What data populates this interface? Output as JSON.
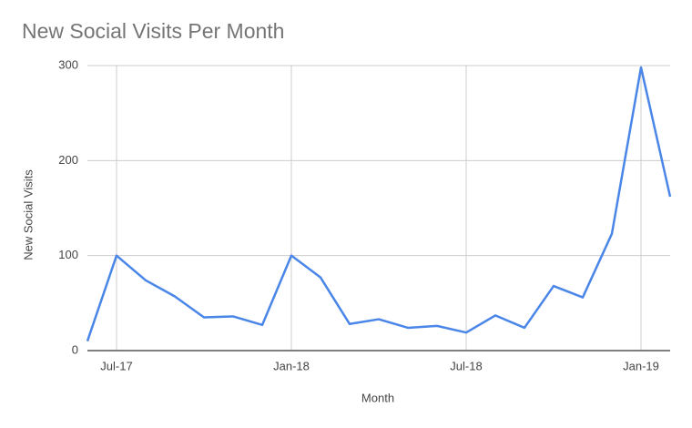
{
  "chart_data": {
    "type": "line",
    "title": "New Social Visits Per Month",
    "x_label": "Month",
    "y_label": "New Social Visits",
    "categories": [
      null,
      "Jul-17",
      null,
      null,
      null,
      null,
      null,
      "Jan-18",
      null,
      null,
      null,
      null,
      null,
      "Jul-18",
      null,
      null,
      null,
      null,
      null,
      "Jan-19",
      null
    ],
    "series": [
      {
        "name": "New Social Visits",
        "color": "#4a86e8",
        "values": [
          10,
          100,
          74,
          57,
          35,
          36,
          27,
          100,
          77,
          28,
          33,
          24,
          26,
          19,
          37,
          24,
          68,
          56,
          123,
          298,
          162
        ]
      }
    ],
    "ylim": [
      0,
      300
    ],
    "yticks": [
      0,
      100,
      200,
      300
    ],
    "grid": true
  }
}
